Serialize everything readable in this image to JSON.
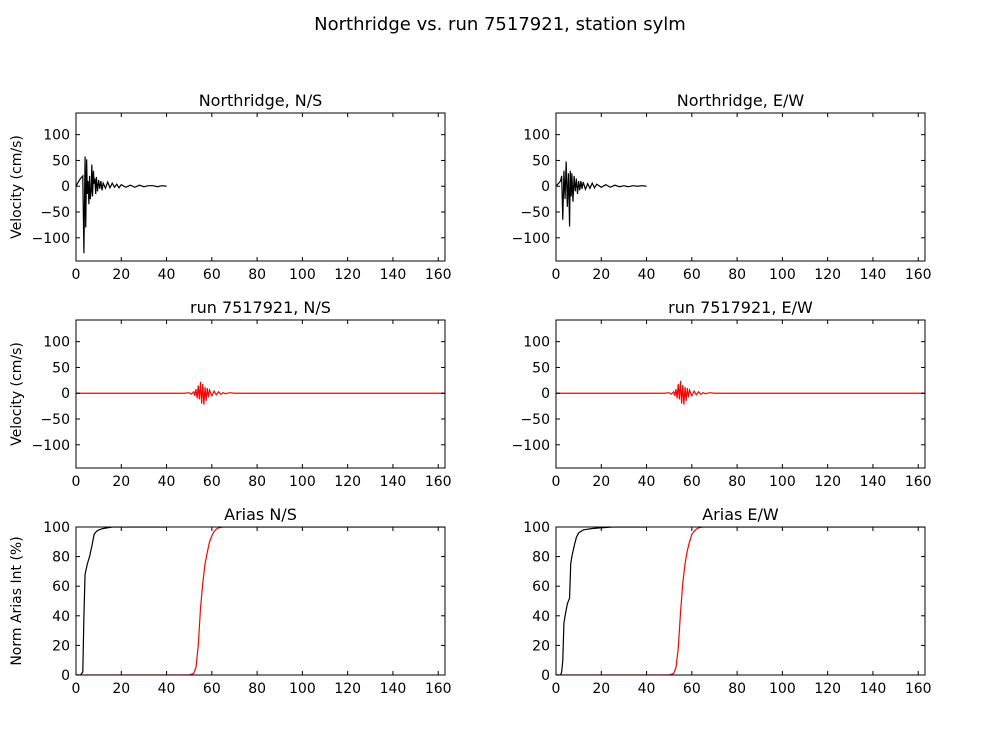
{
  "figure": {
    "title": "Northridge vs. run 7517921, station sylm"
  },
  "chart_data": [
    {
      "type": "line",
      "title": "Northridge, N/S",
      "xlabel": "",
      "ylabel": "Velocity (cm/s)",
      "xlim": [
        0,
        163
      ],
      "ylim": [
        -145,
        142
      ],
      "xticks": [
        0,
        20,
        40,
        60,
        80,
        100,
        120,
        140,
        160
      ],
      "yticks": [
        -100,
        -50,
        0,
        50,
        100
      ],
      "series": [
        {
          "color": "#000000",
          "x": [
            0,
            1,
            2,
            3,
            3.5,
            4,
            4.3,
            4.7,
            5,
            5.3,
            5.7,
            6,
            6.3,
            6.7,
            7,
            7.3,
            7.7,
            8,
            8.3,
            8.7,
            9,
            9.5,
            10,
            10.5,
            11,
            11.5,
            12,
            13,
            14,
            15,
            16,
            17,
            18,
            19,
            20,
            22,
            24,
            26,
            28,
            30,
            32,
            34,
            36,
            38,
            40
          ],
          "y": [
            0,
            8,
            15,
            20,
            -130,
            58,
            -80,
            52,
            -15,
            10,
            -35,
            20,
            -25,
            -10,
            42,
            -20,
            30,
            5,
            15,
            -15,
            18,
            -10,
            12,
            -5,
            10,
            -8,
            6,
            -4,
            8,
            -3,
            6,
            -2,
            4,
            -3,
            3,
            -2,
            2,
            -2,
            2,
            -1,
            1,
            1,
            -1,
            1,
            0
          ]
        }
      ]
    },
    {
      "type": "line",
      "title": "Northridge, E/W",
      "xlabel": "",
      "ylabel": "",
      "xlim": [
        0,
        163
      ],
      "ylim": [
        -145,
        142
      ],
      "xticks": [
        0,
        20,
        40,
        60,
        80,
        100,
        120,
        140,
        160
      ],
      "yticks": [
        -100,
        -50,
        0,
        50,
        100
      ],
      "series": [
        {
          "color": "#000000",
          "x": [
            0,
            1,
            2,
            2.5,
            3,
            3.5,
            4,
            4.5,
            5,
            5.5,
            6,
            6.3,
            6.7,
            7,
            7.5,
            8,
            8.5,
            9,
            9.5,
            10,
            10.5,
            11,
            11.5,
            12,
            13,
            14,
            15,
            16,
            17,
            18,
            20,
            22,
            24,
            26,
            28,
            30,
            32,
            34,
            36,
            38,
            40
          ],
          "y": [
            0,
            5,
            10,
            20,
            -65,
            30,
            -25,
            48,
            -40,
            25,
            -78,
            30,
            -20,
            25,
            -30,
            20,
            -10,
            15,
            -15,
            10,
            -8,
            10,
            -5,
            8,
            -6,
            5,
            -4,
            6,
            -3,
            4,
            -2,
            3,
            -2,
            2,
            -1,
            1,
            -1,
            1,
            0,
            1,
            0
          ]
        }
      ]
    },
    {
      "type": "line",
      "title": "run 7517921, N/S",
      "xlabel": "",
      "ylabel": "Velocity (cm/s)",
      "xlim": [
        0,
        163
      ],
      "ylim": [
        -145,
        142
      ],
      "xticks": [
        0,
        20,
        40,
        60,
        80,
        100,
        120,
        140,
        160
      ],
      "yticks": [
        -100,
        -50,
        0,
        50,
        100
      ],
      "series": [
        {
          "color": "#ff0000",
          "x": [
            0,
            10,
            20,
            30,
            40,
            48,
            50,
            51,
            52,
            52.5,
            53,
            53.5,
            54,
            54.5,
            55,
            55.5,
            56,
            56.5,
            57,
            57.5,
            58,
            58.5,
            59,
            60,
            61,
            62,
            63,
            64,
            65,
            66,
            68,
            70,
            80,
            100,
            120,
            140,
            163
          ],
          "y": [
            0,
            0,
            0,
            0,
            0,
            0,
            1,
            -2,
            3,
            -5,
            8,
            -10,
            15,
            -12,
            22,
            -20,
            18,
            -22,
            12,
            -15,
            10,
            -8,
            6,
            -5,
            4,
            -3,
            3,
            -2,
            1,
            -1,
            1,
            0,
            0,
            0,
            0,
            0,
            0
          ]
        }
      ]
    },
    {
      "type": "line",
      "title": "run 7517921, E/W",
      "xlabel": "",
      "ylabel": "",
      "xlim": [
        0,
        163
      ],
      "ylim": [
        -145,
        142
      ],
      "xticks": [
        0,
        20,
        40,
        60,
        80,
        100,
        120,
        140,
        160
      ],
      "yticks": [
        -100,
        -50,
        0,
        50,
        100
      ],
      "series": [
        {
          "color": "#ff0000",
          "x": [
            0,
            10,
            20,
            30,
            40,
            48,
            50,
            51,
            52,
            52.5,
            53,
            53.5,
            54,
            54.5,
            55,
            55.5,
            56,
            56.5,
            57,
            57.5,
            58,
            58.5,
            59,
            60,
            61,
            62,
            63,
            64,
            65,
            66,
            68,
            70,
            80,
            100,
            120,
            140,
            163
          ],
          "y": [
            0,
            0,
            0,
            0,
            0,
            0,
            1,
            -2,
            3,
            -5,
            8,
            -10,
            18,
            -12,
            24,
            -20,
            16,
            -22,
            12,
            -15,
            10,
            -8,
            6,
            -5,
            4,
            -3,
            3,
            -2,
            1,
            -1,
            1,
            0,
            0,
            0,
            0,
            0,
            0
          ]
        }
      ]
    },
    {
      "type": "line",
      "title": "Arias N/S",
      "xlabel": "",
      "ylabel": "Norm Arias Int (%)",
      "xlim": [
        0,
        163
      ],
      "ylim": [
        0,
        100
      ],
      "xticks": [
        0,
        20,
        40,
        60,
        80,
        100,
        120,
        140,
        160
      ],
      "yticks": [
        0,
        20,
        40,
        60,
        80,
        100
      ],
      "series": [
        {
          "color": "#000000",
          "x": [
            0,
            2,
            3,
            3.5,
            4,
            5,
            6,
            7,
            8,
            9,
            10,
            12,
            14,
            16,
            20,
            25,
            30,
            40
          ],
          "y": [
            0,
            0,
            2,
            40,
            68,
            75,
            80,
            87,
            95,
            97,
            98,
            99,
            99.5,
            100,
            100,
            100,
            100,
            100
          ]
        },
        {
          "color": "#ff0000",
          "x": [
            0,
            20,
            40,
            50,
            52,
            53,
            54,
            55,
            56,
            57,
            58,
            59,
            60,
            61,
            62,
            63,
            65,
            70,
            100,
            163
          ],
          "y": [
            0,
            0,
            0,
            0,
            1,
            5,
            20,
            45,
            62,
            75,
            83,
            90,
            94,
            97,
            98.5,
            99.5,
            100,
            100,
            100,
            100
          ]
        }
      ]
    },
    {
      "type": "line",
      "title": "Arias E/W",
      "xlabel": "",
      "ylabel": "",
      "xlim": [
        0,
        163
      ],
      "ylim": [
        0,
        100
      ],
      "xticks": [
        0,
        20,
        40,
        60,
        80,
        100,
        120,
        140,
        160
      ],
      "yticks": [
        0,
        20,
        40,
        60,
        80,
        100
      ],
      "series": [
        {
          "color": "#000000",
          "x": [
            0,
            2,
            2.5,
            3,
            3.5,
            4,
            5,
            6,
            6.5,
            7,
            8,
            9,
            10,
            12,
            14,
            16,
            20,
            25,
            30,
            40
          ],
          "y": [
            0,
            0,
            2,
            10,
            35,
            40,
            48,
            52,
            75,
            80,
            87,
            93,
            96,
            98,
            98.5,
            99,
            99.5,
            100,
            100,
            100
          ]
        },
        {
          "color": "#ff0000",
          "x": [
            0,
            20,
            40,
            50,
            52,
            53,
            54,
            55,
            56,
            57,
            58,
            59,
            60,
            61,
            62,
            63,
            65,
            70,
            100,
            163
          ],
          "y": [
            0,
            0,
            0,
            0,
            1,
            5,
            18,
            42,
            62,
            75,
            84,
            90,
            95,
            97,
            98.5,
            99.5,
            100,
            100,
            100,
            100
          ]
        }
      ]
    }
  ]
}
